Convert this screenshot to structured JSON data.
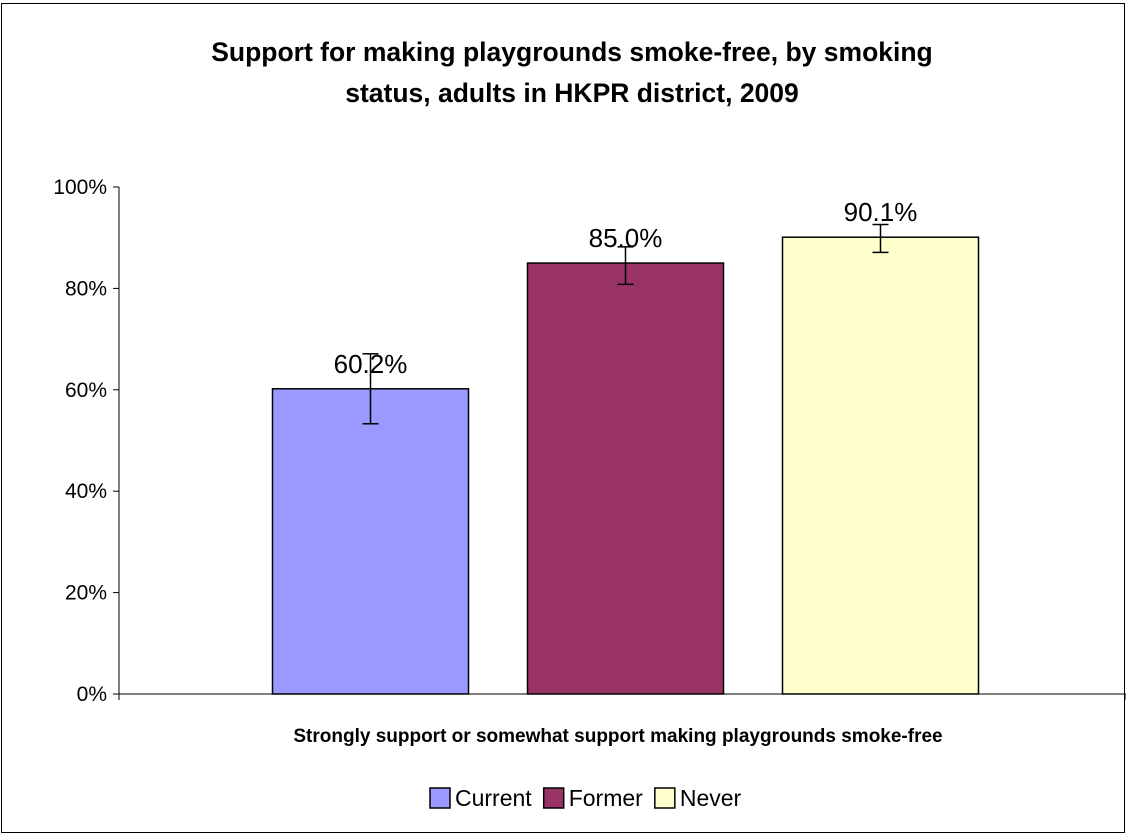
{
  "chart_data": {
    "type": "bar",
    "title_lines": [
      "Support for making playgrounds smoke-free, by smoking",
      "status, adults in HKPR district, 2009"
    ],
    "categories": [
      "Strongly support or somewhat support making playgrounds smoke-free"
    ],
    "xlabel": "",
    "ylabel": "",
    "ylim": [
      0,
      100
    ],
    "yticks": [
      0,
      20,
      40,
      60,
      80,
      100
    ],
    "ytick_labels": [
      "0%",
      "20%",
      "40%",
      "60%",
      "80%",
      "100%"
    ],
    "grid": false,
    "legend_position": "bottom",
    "series": [
      {
        "name": "Current",
        "values": [
          60.2
        ],
        "label": "60.2%",
        "error_low": [
          53.3
        ],
        "error_high": [
          67.1
        ],
        "color": "#9999FF"
      },
      {
        "name": "Former",
        "values": [
          85.0
        ],
        "label": "85.0%",
        "error_low": [
          80.8
        ],
        "error_high": [
          88.2
        ],
        "color": "#993366"
      },
      {
        "name": "Never",
        "values": [
          90.1
        ],
        "label": "90.1%",
        "error_low": [
          87.1
        ],
        "error_high": [
          92.6
        ],
        "color": "#FFFFCC"
      }
    ]
  }
}
